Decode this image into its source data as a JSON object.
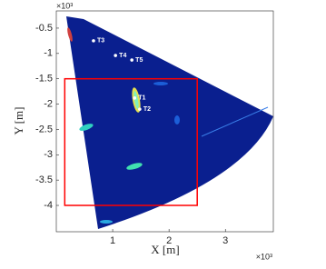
{
  "chart_data": {
    "type": "radar-image",
    "xlabel": "X [m]",
    "ylabel": "Y [m]",
    "x_multiplier": "×10³",
    "y_multiplier": "×10³",
    "xlim": [
      0,
      3.85
    ],
    "ylim": [
      -4.52,
      -0.16
    ],
    "xticks": [
      1,
      2,
      3
    ],
    "yticks": [
      -0.5,
      -1,
      -1.5,
      -2,
      -2.5,
      -3,
      -3.5,
      -4
    ],
    "targets": [
      {
        "label": "T1",
        "x": 1.39,
        "y": -1.88
      },
      {
        "label": "T2",
        "x": 1.48,
        "y": -2.1
      },
      {
        "label": "T3",
        "x": 0.66,
        "y": -0.75
      },
      {
        "label": "T4",
        "x": 1.05,
        "y": -1.04
      },
      {
        "label": "T5",
        "x": 1.34,
        "y": -1.13
      }
    ],
    "region": {
      "x": [
        0.15,
        2.5
      ],
      "y": [
        -4,
        -1.5
      ],
      "color": "#ff0000"
    }
  }
}
